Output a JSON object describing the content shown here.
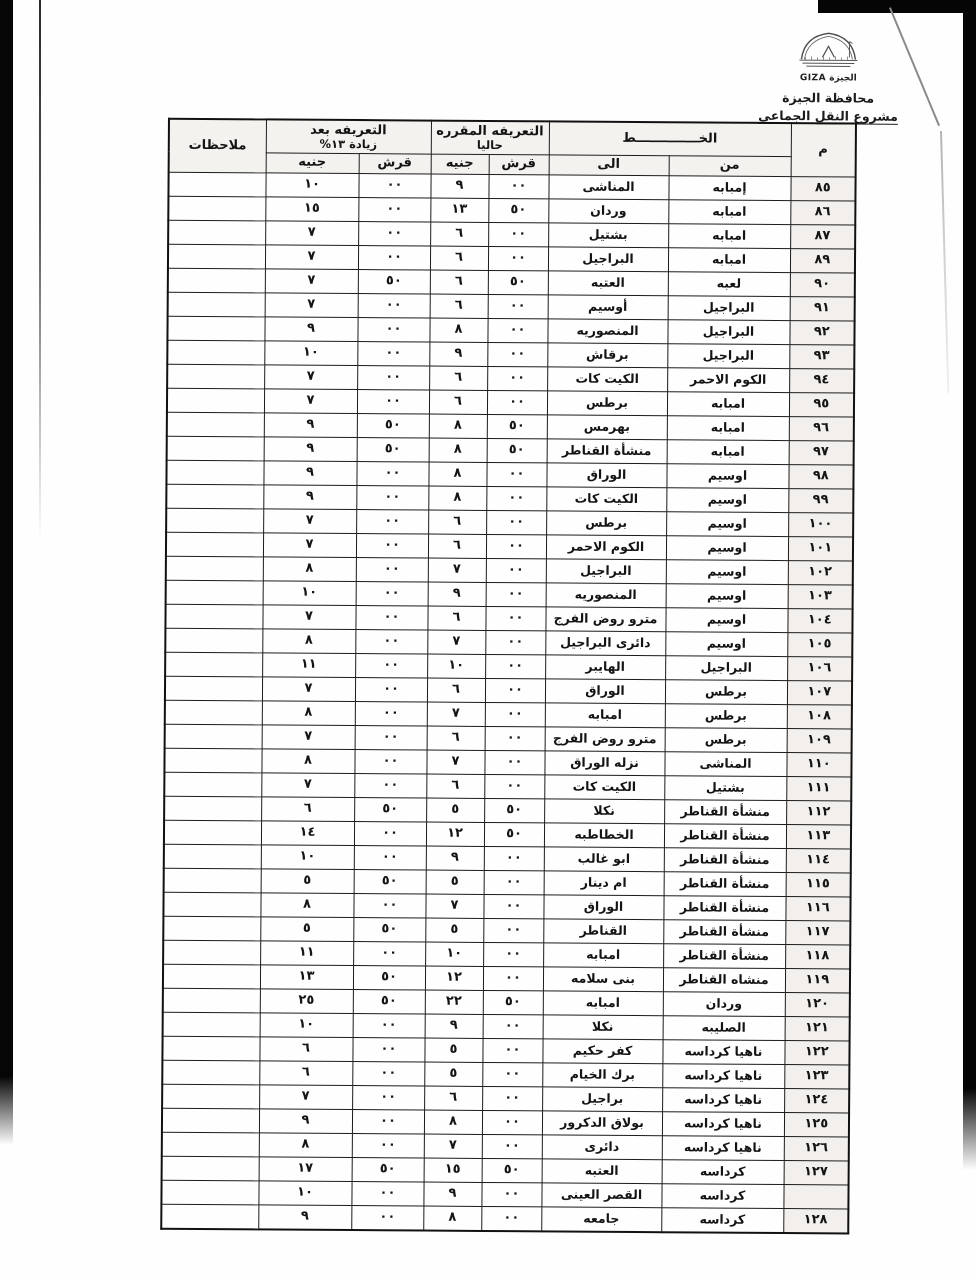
{
  "branding": {
    "logo_caption": "الجيزة GIZA",
    "org_title": "محافظة الجيزة",
    "project_subtitle": "مشروع النقل الجماعى"
  },
  "table": {
    "header": {
      "serial": "م",
      "line_group": "الخــــــــــــــط",
      "from": "من",
      "to": "الى",
      "current_group_line1": "التعريفه المقرره",
      "current_group_line2": "حاليا",
      "increase_group_line1": "التعريفه بعد",
      "increase_group_line2": "زيادة ١٣%",
      "piasters": "قرش",
      "pounds": "جنيه",
      "notes": "ملاحظات"
    },
    "rows": [
      {
        "no": "٨٥",
        "from": "إمبابه",
        "to": "المناشى",
        "cur_pt": "٠٠",
        "cur_eg": "٩",
        "new_pt": "٠٠",
        "new_eg": "١٠",
        "notes": ""
      },
      {
        "no": "٨٦",
        "from": "امبابه",
        "to": "وردان",
        "cur_pt": "٥٠",
        "cur_eg": "١٣",
        "new_pt": "٠٠",
        "new_eg": "١٥",
        "notes": ""
      },
      {
        "no": "٨٧",
        "from": "امبابه",
        "to": "بشتيل",
        "cur_pt": "٠٠",
        "cur_eg": "٦",
        "new_pt": "٠٠",
        "new_eg": "٧",
        "notes": ""
      },
      {
        "no": "٨٩",
        "from": "امبابه",
        "to": "البراجيل",
        "cur_pt": "٠٠",
        "cur_eg": "٦",
        "new_pt": "٠٠",
        "new_eg": "٧",
        "notes": ""
      },
      {
        "no": "٩٠",
        "from": "لعبه",
        "to": "العتبه",
        "cur_pt": "٥٠",
        "cur_eg": "٦",
        "new_pt": "٥٠",
        "new_eg": "٧",
        "notes": ""
      },
      {
        "no": "٩١",
        "from": "البراجيل",
        "to": "أوسيم",
        "cur_pt": "٠٠",
        "cur_eg": "٦",
        "new_pt": "٠٠",
        "new_eg": "٧",
        "notes": ""
      },
      {
        "no": "٩٢",
        "from": "البراجيل",
        "to": "المنصوريه",
        "cur_pt": "٠٠",
        "cur_eg": "٨",
        "new_pt": "٠٠",
        "new_eg": "٩",
        "notes": ""
      },
      {
        "no": "٩٣",
        "from": "البراجيل",
        "to": "برقاش",
        "cur_pt": "٠٠",
        "cur_eg": "٩",
        "new_pt": "٠٠",
        "new_eg": "١٠",
        "notes": ""
      },
      {
        "no": "٩٤",
        "from": "الكوم الاحمر",
        "to": "الكيت كات",
        "cur_pt": "٠٠",
        "cur_eg": "٦",
        "new_pt": "٠٠",
        "new_eg": "٧",
        "notes": ""
      },
      {
        "no": "٩٥",
        "from": "امبابه",
        "to": "برطس",
        "cur_pt": "٠٠",
        "cur_eg": "٦",
        "new_pt": "٠٠",
        "new_eg": "٧",
        "notes": ""
      },
      {
        "no": "٩٦",
        "from": "امبابه",
        "to": "بهرمس",
        "cur_pt": "٥٠",
        "cur_eg": "٨",
        "new_pt": "٥٠",
        "new_eg": "٩",
        "notes": ""
      },
      {
        "no": "٩٧",
        "from": "امبابه",
        "to": "منشأة القناطر",
        "cur_pt": "٥٠",
        "cur_eg": "٨",
        "new_pt": "٥٠",
        "new_eg": "٩",
        "notes": ""
      },
      {
        "no": "٩٨",
        "from": "اوسيم",
        "to": "الوراق",
        "cur_pt": "٠٠",
        "cur_eg": "٨",
        "new_pt": "٠٠",
        "new_eg": "٩",
        "notes": ""
      },
      {
        "no": "٩٩",
        "from": "اوسيم",
        "to": "الكيت كات",
        "cur_pt": "٠٠",
        "cur_eg": "٨",
        "new_pt": "٠٠",
        "new_eg": "٩",
        "notes": ""
      },
      {
        "no": "١٠٠",
        "from": "اوسيم",
        "to": "برطس",
        "cur_pt": "٠٠",
        "cur_eg": "٦",
        "new_pt": "٠٠",
        "new_eg": "٧",
        "notes": ""
      },
      {
        "no": "١٠١",
        "from": "اوسيم",
        "to": "الكوم الاحمر",
        "cur_pt": "٠٠",
        "cur_eg": "٦",
        "new_pt": "٠٠",
        "new_eg": "٧",
        "notes": ""
      },
      {
        "no": "١٠٢",
        "from": "اوسيم",
        "to": "البراجيل",
        "cur_pt": "٠٠",
        "cur_eg": "٧",
        "new_pt": "٠٠",
        "new_eg": "٨",
        "notes": ""
      },
      {
        "no": "١٠٣",
        "from": "اوسيم",
        "to": "المنصوريه",
        "cur_pt": "٠٠",
        "cur_eg": "٩",
        "new_pt": "٠٠",
        "new_eg": "١٠",
        "notes": ""
      },
      {
        "no": "١٠٤",
        "from": "اوسيم",
        "to": "مترو روض الفرج",
        "cur_pt": "٠٠",
        "cur_eg": "٦",
        "new_pt": "٠٠",
        "new_eg": "٧",
        "notes": ""
      },
      {
        "no": "١٠٥",
        "from": "اوسيم",
        "to": "دائرى البراجيل",
        "cur_pt": "٠٠",
        "cur_eg": "٧",
        "new_pt": "٠٠",
        "new_eg": "٨",
        "notes": ""
      },
      {
        "no": "١٠٦",
        "from": "البراجيل",
        "to": "الهايبر",
        "cur_pt": "٠٠",
        "cur_eg": "١٠",
        "new_pt": "٠٠",
        "new_eg": "١١",
        "notes": ""
      },
      {
        "no": "١٠٧",
        "from": "برطس",
        "to": "الوراق",
        "cur_pt": "٠٠",
        "cur_eg": "٦",
        "new_pt": "٠٠",
        "new_eg": "٧",
        "notes": ""
      },
      {
        "no": "١٠٨",
        "from": "برطس",
        "to": "امبابه",
        "cur_pt": "٠٠",
        "cur_eg": "٧",
        "new_pt": "٠٠",
        "new_eg": "٨",
        "notes": ""
      },
      {
        "no": "١٠٩",
        "from": "برطس",
        "to": "مترو روض الفرج",
        "cur_pt": "٠٠",
        "cur_eg": "٦",
        "new_pt": "٠٠",
        "new_eg": "٧",
        "notes": ""
      },
      {
        "no": "١١٠",
        "from": "المناشى",
        "to": "نزله الوراق",
        "cur_pt": "٠٠",
        "cur_eg": "٧",
        "new_pt": "٠٠",
        "new_eg": "٨",
        "notes": ""
      },
      {
        "no": "١١١",
        "from": "بشتيل",
        "to": "الكيت كات",
        "cur_pt": "٠٠",
        "cur_eg": "٦",
        "new_pt": "٠٠",
        "new_eg": "٧",
        "notes": ""
      },
      {
        "no": "١١٢",
        "from": "منشأة القناطر",
        "to": "نكلا",
        "cur_pt": "٥٠",
        "cur_eg": "٥",
        "new_pt": "٥٠",
        "new_eg": "٦",
        "notes": ""
      },
      {
        "no": "١١٣",
        "from": "منشأة القناطر",
        "to": "الخطاطبه",
        "cur_pt": "٥٠",
        "cur_eg": "١٢",
        "new_pt": "٠٠",
        "new_eg": "١٤",
        "notes": ""
      },
      {
        "no": "١١٤",
        "from": "منشأة القناطر",
        "to": "ابو غالب",
        "cur_pt": "٠٠",
        "cur_eg": "٩",
        "new_pt": "٠٠",
        "new_eg": "١٠",
        "notes": ""
      },
      {
        "no": "١١٥",
        "from": "منشأة القناطر",
        "to": "ام دينار",
        "cur_pt": "٠٠",
        "cur_eg": "٥",
        "new_pt": "٥٠",
        "new_eg": "٥",
        "notes": ""
      },
      {
        "no": "١١٦",
        "from": "منشأة القناطر",
        "to": "الوراق",
        "cur_pt": "٠٠",
        "cur_eg": "٧",
        "new_pt": "٠٠",
        "new_eg": "٨",
        "notes": ""
      },
      {
        "no": "١١٧",
        "from": "منشأة القناطر",
        "to": "القناطر",
        "cur_pt": "٠٠",
        "cur_eg": "٥",
        "new_pt": "٥٠",
        "new_eg": "٥",
        "notes": ""
      },
      {
        "no": "١١٨",
        "from": "منشأة القناطر",
        "to": "امبابه",
        "cur_pt": "٠٠",
        "cur_eg": "١٠",
        "new_pt": "٠٠",
        "new_eg": "١١",
        "notes": ""
      },
      {
        "no": "١١٩",
        "from": "منشاه القناطر",
        "to": "بنى سلامه",
        "cur_pt": "٠٠",
        "cur_eg": "١٢",
        "new_pt": "٥٠",
        "new_eg": "١٣",
        "notes": ""
      },
      {
        "no": "١٢٠",
        "from": "وردان",
        "to": "امبابه",
        "cur_pt": "٥٠",
        "cur_eg": "٢٢",
        "new_pt": "٥٠",
        "new_eg": "٢٥",
        "notes": ""
      },
      {
        "no": "١٢١",
        "from": "الصليبه",
        "to": "نكلا",
        "cur_pt": "٠٠",
        "cur_eg": "٩",
        "new_pt": "٠٠",
        "new_eg": "١٠",
        "notes": ""
      },
      {
        "no": "١٢٢",
        "from": "ناهيا كرداسه",
        "to": "كفر حكيم",
        "cur_pt": "٠٠",
        "cur_eg": "٥",
        "new_pt": "٠٠",
        "new_eg": "٦",
        "notes": ""
      },
      {
        "no": "١٢٣",
        "from": "ناهيا كرداسه",
        "to": "برك الخيام",
        "cur_pt": "٠٠",
        "cur_eg": "٥",
        "new_pt": "٠٠",
        "new_eg": "٦",
        "notes": ""
      },
      {
        "no": "١٢٤",
        "from": "ناهيا كرداسه",
        "to": "براجيل",
        "cur_pt": "٠٠",
        "cur_eg": "٦",
        "new_pt": "٠٠",
        "new_eg": "٧",
        "notes": ""
      },
      {
        "no": "١٢٥",
        "from": "ناهيا كرداسه",
        "to": "بولاق الدكرور",
        "cur_pt": "٠٠",
        "cur_eg": "٨",
        "new_pt": "٠٠",
        "new_eg": "٩",
        "notes": ""
      },
      {
        "no": "١٢٦",
        "from": "ناهيا كرداسه",
        "to": "دائرى",
        "cur_pt": "٠٠",
        "cur_eg": "٧",
        "new_pt": "٠٠",
        "new_eg": "٨",
        "notes": ""
      },
      {
        "no": "١٢٧",
        "from": "كرداسه",
        "to": "العتبه",
        "cur_pt": "٥٠",
        "cur_eg": "١٥",
        "new_pt": "٥٠",
        "new_eg": "١٧",
        "notes": ""
      },
      {
        "no": "",
        "from": "كرداسه",
        "to": "القصر العينى",
        "cur_pt": "٠٠",
        "cur_eg": "٩",
        "new_pt": "٠٠",
        "new_eg": "١٠",
        "notes": ""
      },
      {
        "no": "١٢٨",
        "from": "كرداسه",
        "to": "جامعه",
        "cur_pt": "٠٠",
        "cur_eg": "٨",
        "new_pt": "٠٠",
        "new_eg": "٩",
        "notes": ""
      }
    ]
  }
}
